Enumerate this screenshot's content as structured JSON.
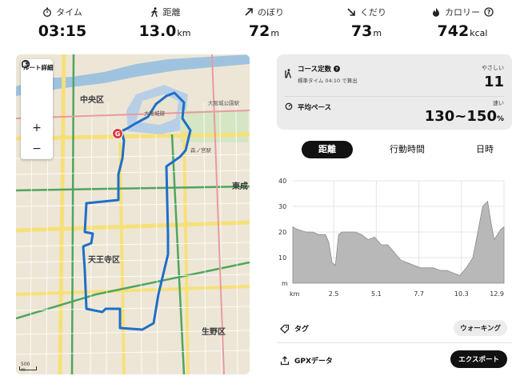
{
  "stats": [
    {
      "label": "タイム",
      "value": "03:15",
      "unit": "",
      "icon": "stopwatch-icon"
    },
    {
      "label": "距離",
      "value": "13.0",
      "unit": "km",
      "icon": "walking-person-icon"
    },
    {
      "label": "のぼり",
      "value": "72",
      "unit": "m",
      "icon": "arrow-up-right-icon"
    },
    {
      "label": "くだり",
      "value": "73",
      "unit": "m",
      "icon": "arrow-down-right-icon"
    },
    {
      "label": "カロリー",
      "value": "742",
      "unit": "kcal",
      "icon": "flame-icon"
    }
  ],
  "map": {
    "panel_title": "ルート詳細",
    "zoom_in": "+",
    "zoom_out": "−",
    "scale_label": "500 m",
    "labels": {
      "chuo": "中央区",
      "tennoji": "天王寺区",
      "ikuno": "生野区",
      "higashinari": "東成",
      "castle": "大阪城跡",
      "castle_park": "大阪城公園駅",
      "morinomiya": "森ノ宮駅"
    },
    "goal_marker": "G"
  },
  "course": {
    "constant_label": "コース定数",
    "standard_time": "標準タイム 04:10 で算出",
    "difficulty_label": "やさしい",
    "constant_value": "11",
    "pace_label": "平均ペース",
    "pace_speed_label": "速い",
    "pace_value": "130~150",
    "pace_unit": "%"
  },
  "tabs": [
    {
      "label": "距離",
      "active": true
    },
    {
      "label": "行動時間",
      "active": false
    },
    {
      "label": "日時",
      "active": false
    }
  ],
  "chart_data": {
    "type": "area",
    "xlabel": "km",
    "ylabel": "m",
    "xlim": [
      0,
      12.9
    ],
    "ylim": [
      0,
      40
    ],
    "xticks": [
      "2.5",
      "5.1",
      "7.7",
      "10.3",
      "12.9"
    ],
    "yticks": [
      "10",
      "20",
      "30",
      "40"
    ],
    "series": [
      {
        "x": [
          0,
          0.3,
          0.8,
          1.2,
          1.6,
          2.0,
          2.2,
          2.4,
          2.6,
          2.8,
          3.0,
          3.4,
          3.8,
          4.2,
          4.6,
          5.0,
          5.4,
          5.8,
          6.2,
          6.6,
          7.0,
          7.4,
          7.8,
          8.2,
          8.6,
          9.0,
          9.4,
          9.8,
          10.2,
          10.6,
          11.0,
          11.3,
          11.6,
          11.9,
          12.1,
          12.3,
          12.5,
          12.7,
          12.9
        ],
        "y": [
          22,
          21,
          20,
          20,
          19,
          19,
          16,
          8,
          7,
          19,
          20,
          20,
          20,
          19,
          17,
          18,
          15,
          15,
          12,
          9,
          8,
          7,
          6,
          6,
          6,
          5,
          5,
          4,
          3,
          6,
          10,
          20,
          30,
          32,
          24,
          17,
          19,
          21,
          22
        ]
      }
    ],
    "fill_color": "#b8b8b8"
  },
  "bottom": {
    "tag_label": "タグ",
    "tag_value": "ウォーキング",
    "gpx_label": "GPXデータ",
    "export_label": "エクスポート"
  }
}
